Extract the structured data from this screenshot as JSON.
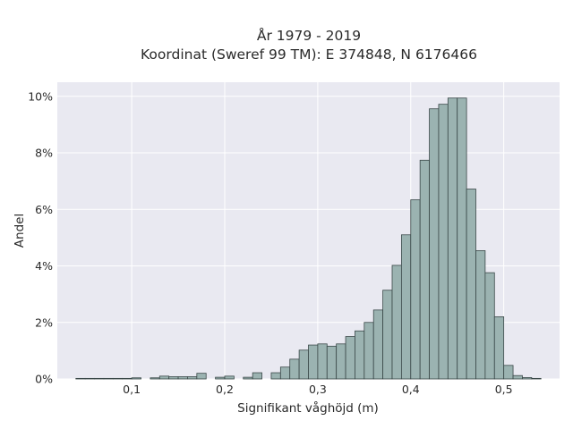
{
  "chart_data": {
    "type": "bar",
    "title": "År 1979 - 2019",
    "subtitle": "Koordinat (Sweref 99 TM): E 374848, N 6176466",
    "xlabel": "Signifikant våghöjd (m)",
    "ylabel": "Andel",
    "xlim": [
      0.02,
      0.56
    ],
    "ylim": [
      0,
      10.5
    ],
    "x_ticks": [
      0.1,
      0.2,
      0.3,
      0.4,
      0.5
    ],
    "x_tick_labels": [
      "0,1",
      "0,2",
      "0,3",
      "0,4",
      "0,5"
    ],
    "y_ticks": [
      0,
      2,
      4,
      6,
      8,
      10
    ],
    "y_tick_labels": [
      "0%",
      "2%",
      "4%",
      "6%",
      "8%",
      "10%"
    ],
    "grid": true,
    "bin_width": 0.01,
    "series": [
      {
        "bin_start": [
          0.04,
          0.05,
          0.06,
          0.07,
          0.08,
          0.09,
          0.1,
          0.11,
          0.12,
          0.13,
          0.14,
          0.15,
          0.16,
          0.17,
          0.18,
          0.19,
          0.2,
          0.21,
          0.22,
          0.23,
          0.24,
          0.25,
          0.26,
          0.27,
          0.28,
          0.29,
          0.3,
          0.31,
          0.32,
          0.33,
          0.34,
          0.35,
          0.36,
          0.37,
          0.38,
          0.39,
          0.4,
          0.41,
          0.42,
          0.43,
          0.44,
          0.45,
          0.46,
          0.47,
          0.48,
          0.49,
          0.5,
          0.51,
          0.52,
          0.53
        ],
        "values": [
          0.02,
          0.02,
          0.02,
          0.02,
          0.02,
          0.02,
          0.04,
          0.0,
          0.04,
          0.1,
          0.08,
          0.08,
          0.08,
          0.2,
          0.0,
          0.06,
          0.1,
          0.0,
          0.06,
          0.22,
          0.0,
          0.22,
          0.42,
          0.7,
          1.02,
          1.2,
          1.24,
          1.16,
          1.24,
          1.5,
          1.7,
          2.0,
          2.44,
          3.14,
          4.02,
          5.1,
          6.34,
          7.74,
          9.56,
          9.72,
          9.94,
          9.94,
          6.72,
          4.54,
          3.76,
          2.2,
          0.48,
          0.12,
          0.05,
          0.02
        ]
      }
    ],
    "colors": {
      "bar_fill": "#9bb3b1",
      "bar_edge": "#3a4848",
      "plot_background": "#e9e9f1",
      "grid": "#ffffff"
    }
  }
}
